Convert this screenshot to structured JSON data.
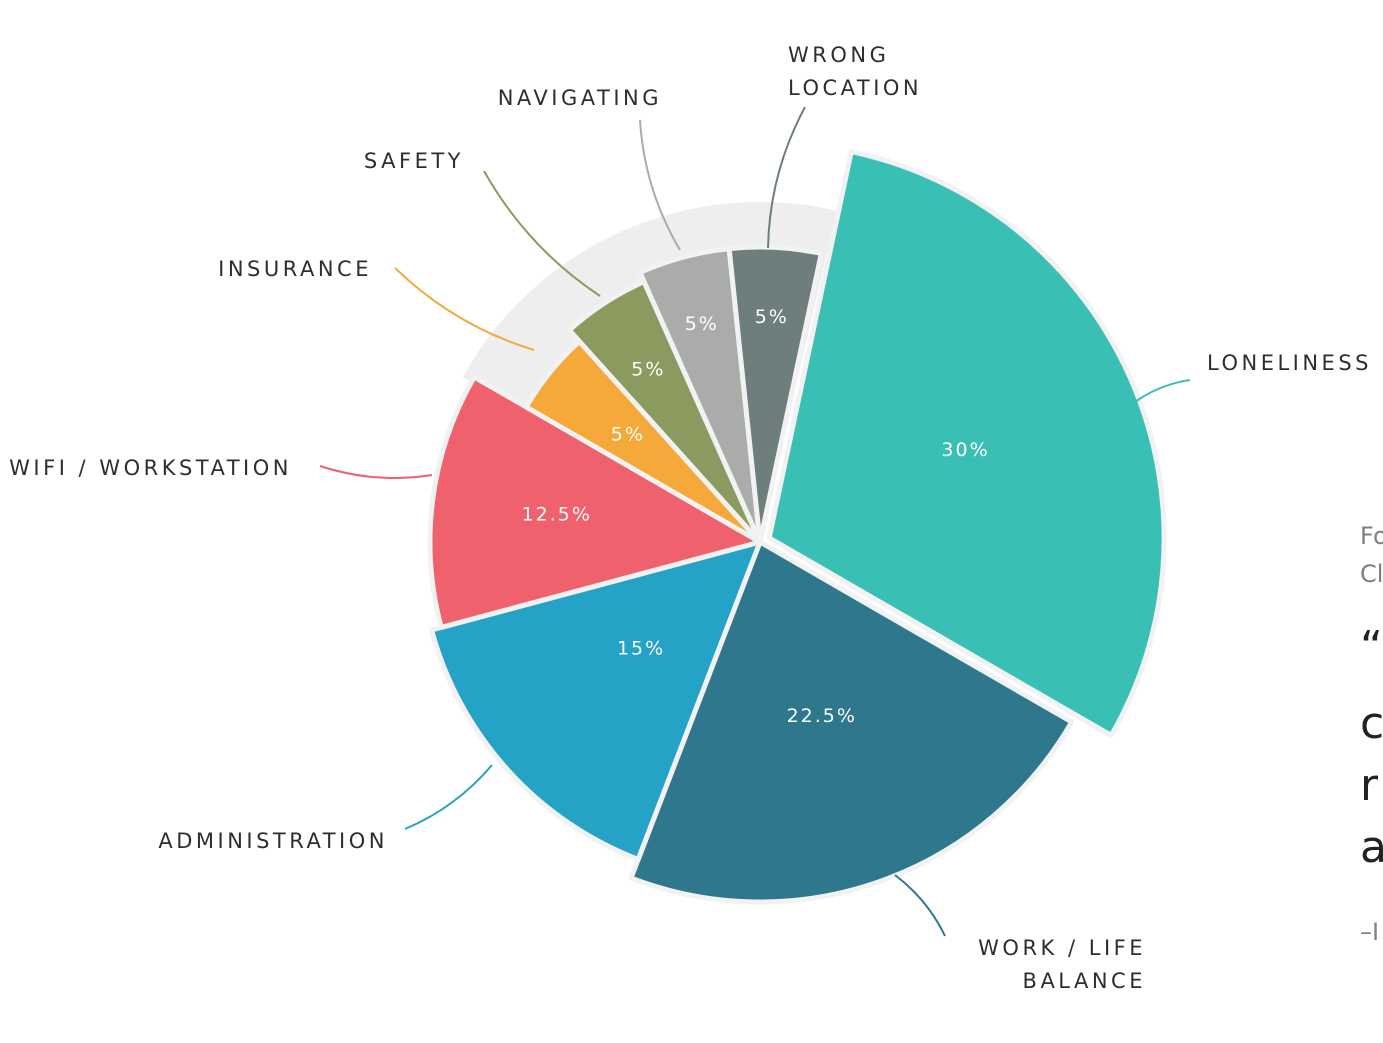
{
  "chart_data": {
    "type": "pie",
    "title": "",
    "slices": [
      {
        "label": "LONELINESS",
        "value": 30,
        "value_label": "30%",
        "color": "#3abfb4",
        "exploded": true,
        "small": false
      },
      {
        "label": "WORK / LIFE BALANCE",
        "label_lines": [
          "WORK / LIFE",
          "BALANCE"
        ],
        "value": 22.5,
        "value_label": "22.5%",
        "color": "#2e778c",
        "exploded": false,
        "small": false
      },
      {
        "label": "ADMINISTRATION",
        "value": 15,
        "value_label": "15%",
        "color": "#24a3c6",
        "exploded": false,
        "small": false
      },
      {
        "label": "WIFI / WORKSTATION",
        "value": 12.5,
        "value_label": "12.5%",
        "color": "#ef616c",
        "exploded": false,
        "small": false
      },
      {
        "label": "INSURANCE",
        "value": 5,
        "value_label": "5%",
        "color": "#f5a93a",
        "exploded": false,
        "small": true
      },
      {
        "label": "SAFETY",
        "value": 5,
        "value_label": "5%",
        "color": "#8b9a5e",
        "exploded": false,
        "small": true
      },
      {
        "label": "NAVIGATING",
        "value": 5,
        "value_label": "5%",
        "color": "#a9aca9",
        "exploded": false,
        "small": true
      },
      {
        "label": "WRONG LOCATION",
        "label_lines": [
          "WRONG",
          "LOCATION"
        ],
        "value": 5,
        "value_label": "5%",
        "color": "#6d7e7c",
        "exploded": false,
        "small": true
      }
    ],
    "background_ring_color": "#eeeeee",
    "gap_color": "#f2f2f2"
  },
  "side_text": {
    "line1": "Fo",
    "line2": "Cl",
    "line3": "“",
    "line4": "c",
    "line5": "r",
    "line6": "a",
    "line7": "–I"
  }
}
